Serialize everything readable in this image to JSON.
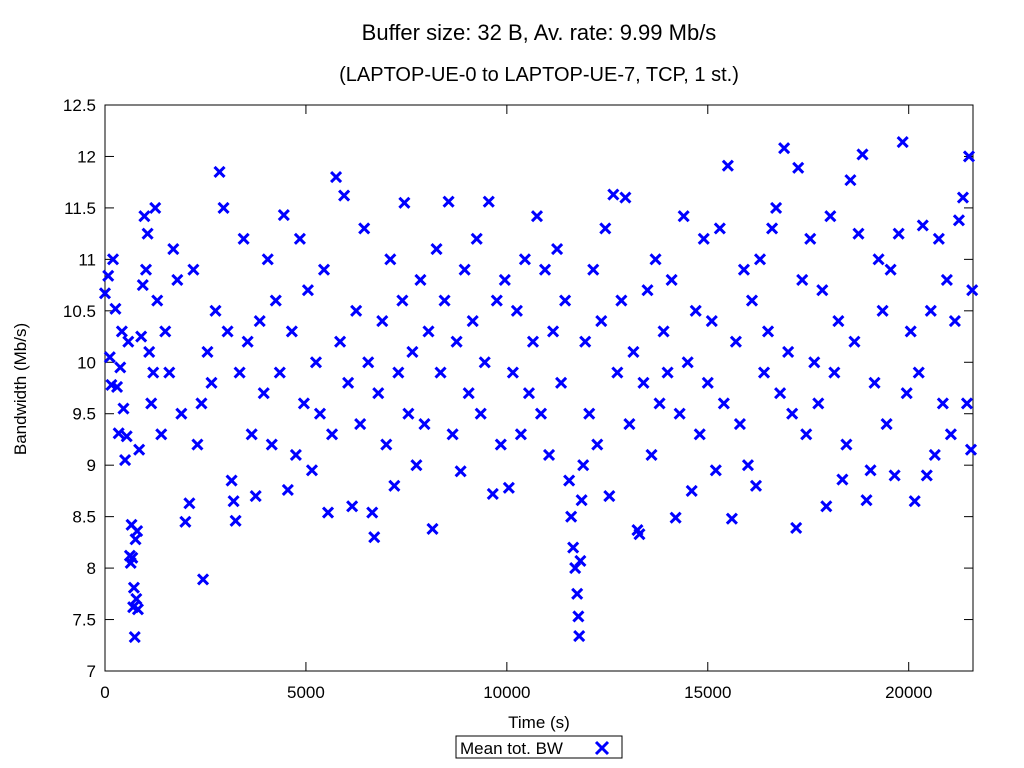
{
  "chart_data": {
    "type": "scatter",
    "title": "Buffer size: 32 B, Av. rate: 9.99 Mb/s",
    "subtitle": "(LAPTOP-UE-0 to LAPTOP-UE-7, TCP, 1 st.)",
    "xlabel": "Time (s)",
    "ylabel": "Bandwidth (Mb/s)",
    "xlim": [
      0,
      21600
    ],
    "ylim": [
      7,
      12.5
    ],
    "xticks": [
      0,
      5000,
      10000,
      15000,
      20000
    ],
    "yticks": [
      7,
      7.5,
      8,
      8.5,
      9,
      9.5,
      10,
      10.5,
      11,
      11.5,
      12,
      12.5
    ],
    "grid": false,
    "legend_position": "bottom-center, below plot",
    "marker": "x",
    "series": [
      {
        "name": "Mean tot. BW",
        "color": "#0000ff",
        "points": [
          [
            0,
            10.67
          ],
          [
            80,
            10.84
          ],
          [
            120,
            10.05
          ],
          [
            160,
            9.78
          ],
          [
            200,
            11.0
          ],
          [
            260,
            10.52
          ],
          [
            300,
            9.76
          ],
          [
            340,
            9.31
          ],
          [
            380,
            9.95
          ],
          [
            420,
            10.3
          ],
          [
            460,
            9.55
          ],
          [
            500,
            9.05
          ],
          [
            540,
            9.28
          ],
          [
            580,
            10.2
          ],
          [
            620,
            8.12
          ],
          [
            640,
            8.05
          ],
          [
            660,
            8.42
          ],
          [
            680,
            8.1
          ],
          [
            700,
            7.62
          ],
          [
            720,
            7.81
          ],
          [
            740,
            7.33
          ],
          [
            760,
            8.28
          ],
          [
            780,
            7.7
          ],
          [
            800,
            8.36
          ],
          [
            820,
            7.6
          ],
          [
            850,
            9.15
          ],
          [
            900,
            10.25
          ],
          [
            940,
            10.75
          ],
          [
            980,
            11.42
          ],
          [
            1020,
            10.9
          ],
          [
            1060,
            11.25
          ],
          [
            1100,
            10.1
          ],
          [
            1150,
            9.6
          ],
          [
            1200,
            9.9
          ],
          [
            1250,
            11.5
          ],
          [
            1300,
            10.6
          ],
          [
            1400,
            9.3
          ],
          [
            1500,
            10.3
          ],
          [
            1600,
            9.9
          ],
          [
            1700,
            11.1
          ],
          [
            1800,
            10.8
          ],
          [
            1900,
            9.5
          ],
          [
            2000,
            8.45
          ],
          [
            2100,
            8.63
          ],
          [
            2200,
            10.9
          ],
          [
            2300,
            9.2
          ],
          [
            2400,
            9.6
          ],
          [
            2440,
            7.89
          ],
          [
            2550,
            10.1
          ],
          [
            2650,
            9.8
          ],
          [
            2750,
            10.5
          ],
          [
            2850,
            11.85
          ],
          [
            2950,
            11.5
          ],
          [
            3050,
            10.3
          ],
          [
            3150,
            8.85
          ],
          [
            3200,
            8.65
          ],
          [
            3250,
            8.46
          ],
          [
            3350,
            9.9
          ],
          [
            3450,
            11.2
          ],
          [
            3550,
            10.2
          ],
          [
            3650,
            9.3
          ],
          [
            3750,
            8.7
          ],
          [
            3850,
            10.4
          ],
          [
            3950,
            9.7
          ],
          [
            4050,
            11.0
          ],
          [
            4150,
            9.2
          ],
          [
            4250,
            10.6
          ],
          [
            4350,
            9.9
          ],
          [
            4450,
            11.43
          ],
          [
            4550,
            8.76
          ],
          [
            4650,
            10.3
          ],
          [
            4750,
            9.1
          ],
          [
            4850,
            11.2
          ],
          [
            4950,
            9.6
          ],
          [
            5050,
            10.7
          ],
          [
            5150,
            8.95
          ],
          [
            5250,
            10.0
          ],
          [
            5350,
            9.5
          ],
          [
            5450,
            10.9
          ],
          [
            5550,
            8.54
          ],
          [
            5650,
            9.3
          ],
          [
            5750,
            11.8
          ],
          [
            5850,
            10.2
          ],
          [
            5950,
            11.62
          ],
          [
            6050,
            9.8
          ],
          [
            6150,
            8.6
          ],
          [
            6250,
            10.5
          ],
          [
            6350,
            9.4
          ],
          [
            6450,
            11.3
          ],
          [
            6550,
            10.0
          ],
          [
            6650,
            8.54
          ],
          [
            6700,
            8.3
          ],
          [
            6800,
            9.7
          ],
          [
            6900,
            10.4
          ],
          [
            7000,
            9.2
          ],
          [
            7100,
            11.0
          ],
          [
            7200,
            8.8
          ],
          [
            7300,
            9.9
          ],
          [
            7400,
            10.6
          ],
          [
            7450,
            11.55
          ],
          [
            7550,
            9.5
          ],
          [
            7650,
            10.1
          ],
          [
            7750,
            9.0
          ],
          [
            7850,
            10.8
          ],
          [
            7950,
            9.4
          ],
          [
            8050,
            10.3
          ],
          [
            8150,
            8.38
          ],
          [
            8250,
            11.1
          ],
          [
            8350,
            9.9
          ],
          [
            8450,
            10.6
          ],
          [
            8550,
            11.56
          ],
          [
            8650,
            9.3
          ],
          [
            8750,
            10.2
          ],
          [
            8850,
            8.94
          ],
          [
            8950,
            10.9
          ],
          [
            9050,
            9.7
          ],
          [
            9150,
            10.4
          ],
          [
            9250,
            11.2
          ],
          [
            9350,
            9.5
          ],
          [
            9450,
            10.0
          ],
          [
            9550,
            11.56
          ],
          [
            9650,
            8.72
          ],
          [
            9750,
            10.6
          ],
          [
            9850,
            9.2
          ],
          [
            9950,
            10.8
          ],
          [
            10050,
            8.78
          ],
          [
            10150,
            9.9
          ],
          [
            10250,
            10.5
          ],
          [
            10350,
            9.3
          ],
          [
            10450,
            11.0
          ],
          [
            10550,
            9.7
          ],
          [
            10650,
            10.2
          ],
          [
            10750,
            11.42
          ],
          [
            10850,
            9.5
          ],
          [
            10950,
            10.9
          ],
          [
            11050,
            9.1
          ],
          [
            11150,
            10.3
          ],
          [
            11250,
            11.1
          ],
          [
            11350,
            9.8
          ],
          [
            11450,
            10.6
          ],
          [
            11550,
            8.85
          ],
          [
            11600,
            8.5
          ],
          [
            11650,
            8.2
          ],
          [
            11700,
            8.0
          ],
          [
            11750,
            7.75
          ],
          [
            11780,
            7.53
          ],
          [
            11800,
            7.34
          ],
          [
            11830,
            8.07
          ],
          [
            11860,
            8.66
          ],
          [
            11900,
            9.0
          ],
          [
            11950,
            10.2
          ],
          [
            12050,
            9.5
          ],
          [
            12150,
            10.9
          ],
          [
            12250,
            9.2
          ],
          [
            12350,
            10.4
          ],
          [
            12450,
            11.3
          ],
          [
            12550,
            8.7
          ],
          [
            12650,
            11.63
          ],
          [
            12750,
            9.9
          ],
          [
            12850,
            10.6
          ],
          [
            12950,
            11.6
          ],
          [
            13050,
            9.4
          ],
          [
            13150,
            10.1
          ],
          [
            13250,
            8.37
          ],
          [
            13300,
            8.33
          ],
          [
            13400,
            9.8
          ],
          [
            13500,
            10.7
          ],
          [
            13600,
            9.1
          ],
          [
            13700,
            11.0
          ],
          [
            13800,
            9.6
          ],
          [
            13900,
            10.3
          ],
          [
            14000,
            9.9
          ],
          [
            14100,
            10.8
          ],
          [
            14200,
            8.49
          ],
          [
            14300,
            9.5
          ],
          [
            14400,
            11.42
          ],
          [
            14500,
            10.0
          ],
          [
            14600,
            8.75
          ],
          [
            14700,
            10.5
          ],
          [
            14800,
            9.3
          ],
          [
            14900,
            11.2
          ],
          [
            15000,
            9.8
          ],
          [
            15100,
            10.4
          ],
          [
            15200,
            8.95
          ],
          [
            15300,
            11.3
          ],
          [
            15400,
            9.6
          ],
          [
            15500,
            11.91
          ],
          [
            15600,
            8.48
          ],
          [
            15700,
            10.2
          ],
          [
            15800,
            9.4
          ],
          [
            15900,
            10.9
          ],
          [
            16000,
            9.0
          ],
          [
            16100,
            10.6
          ],
          [
            16200,
            8.8
          ],
          [
            16300,
            11.0
          ],
          [
            16400,
            9.9
          ],
          [
            16500,
            10.3
          ],
          [
            16600,
            11.3
          ],
          [
            16700,
            11.5
          ],
          [
            16800,
            9.7
          ],
          [
            16900,
            12.08
          ],
          [
            17000,
            10.1
          ],
          [
            17100,
            9.5
          ],
          [
            17200,
            8.39
          ],
          [
            17250,
            11.89
          ],
          [
            17350,
            10.8
          ],
          [
            17450,
            9.3
          ],
          [
            17550,
            11.2
          ],
          [
            17650,
            10.0
          ],
          [
            17750,
            9.6
          ],
          [
            17850,
            10.7
          ],
          [
            17950,
            8.6
          ],
          [
            18050,
            11.42
          ],
          [
            18150,
            9.9
          ],
          [
            18250,
            10.4
          ],
          [
            18350,
            8.86
          ],
          [
            18450,
            9.2
          ],
          [
            18550,
            11.77
          ],
          [
            18650,
            10.2
          ],
          [
            18750,
            11.25
          ],
          [
            18850,
            12.02
          ],
          [
            18950,
            8.66
          ],
          [
            19050,
            8.95
          ],
          [
            19150,
            9.8
          ],
          [
            19250,
            11.0
          ],
          [
            19350,
            10.5
          ],
          [
            19450,
            9.4
          ],
          [
            19550,
            10.9
          ],
          [
            19650,
            8.9
          ],
          [
            19750,
            11.25
          ],
          [
            19850,
            12.14
          ],
          [
            19950,
            9.7
          ],
          [
            20050,
            10.3
          ],
          [
            20150,
            8.65
          ],
          [
            20250,
            9.9
          ],
          [
            20350,
            11.33
          ],
          [
            20450,
            8.9
          ],
          [
            20550,
            10.5
          ],
          [
            20650,
            9.1
          ],
          [
            20750,
            11.2
          ],
          [
            20850,
            9.6
          ],
          [
            20950,
            10.8
          ],
          [
            21050,
            9.3
          ],
          [
            21150,
            10.4
          ],
          [
            21250,
            11.38
          ],
          [
            21350,
            11.6
          ],
          [
            21450,
            9.6
          ],
          [
            21500,
            12.0
          ],
          [
            21550,
            9.15
          ],
          [
            21580,
            10.7
          ]
        ]
      }
    ]
  }
}
